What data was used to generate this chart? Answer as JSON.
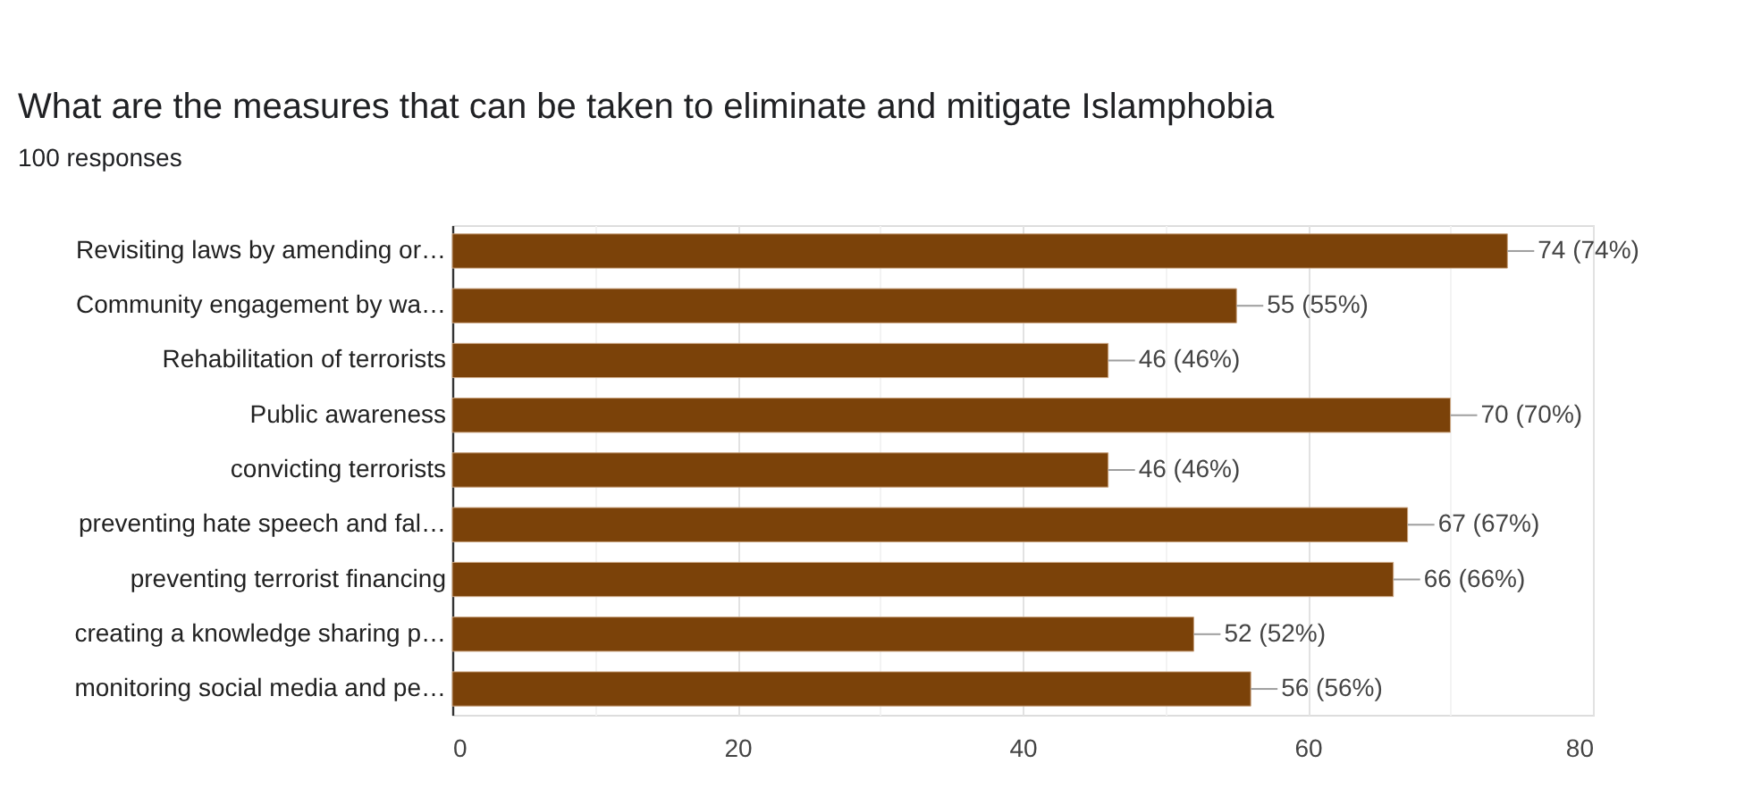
{
  "chart_data": {
    "type": "bar",
    "orientation": "horizontal",
    "title": "What are the measures that can be taken to eliminate and mitigate Islamphobia",
    "subtitle": "100 responses",
    "categories": [
      "Revisiting laws by amending or…",
      "Community engagement by wa…",
      "Rehabilitation of terrorists",
      "Public awareness",
      "convicting terrorists",
      "preventing hate speech and fal…",
      "preventing terrorist financing",
      "creating a knowledge sharing p…",
      "monitoring social media and pe…"
    ],
    "values": [
      74,
      55,
      46,
      70,
      46,
      67,
      66,
      52,
      56
    ],
    "value_labels": [
      "74 (74%)",
      "55 (55%)",
      "46 (46%)",
      "70 (70%)",
      "46 (46%)",
      "67 (67%)",
      "66 (66%)",
      "52 (52%)",
      "56 (56%)"
    ],
    "color": "#7b4209",
    "xlim": [
      0,
      80
    ],
    "xticks": [
      0,
      {
        "value": 10,
        "label": null
      },
      20,
      {
        "value": 30,
        "label": null
      },
      40,
      {
        "value": 50,
        "label": null
      },
      60,
      {
        "value": 70,
        "label": null
      },
      80
    ],
    "grid": "x"
  }
}
